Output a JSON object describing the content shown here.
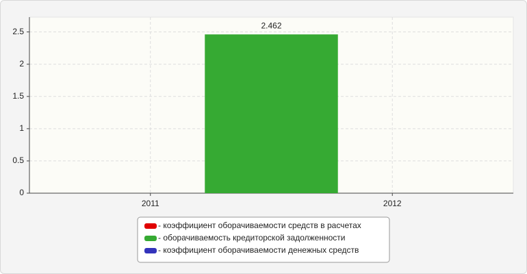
{
  "chart_data": {
    "type": "bar",
    "categories": [
      "2011",
      "2012"
    ],
    "series": [
      {
        "name": "- коэффициент оборачиваемости средств в расчетах",
        "color": "#e00000",
        "values": [
          null,
          null
        ]
      },
      {
        "name": "- оборачиваемость кредиторской задолженности",
        "color": "#36aa33",
        "values": [
          2.462,
          null
        ]
      },
      {
        "name": "- коэффициент оборачиваемости денежных средств",
        "color": "#3333bb",
        "values": [
          null,
          null
        ]
      }
    ],
    "ylim": [
      0,
      2.73
    ],
    "yticks": [
      0,
      0.5,
      1,
      1.5,
      2,
      2.5
    ],
    "grid": true
  }
}
